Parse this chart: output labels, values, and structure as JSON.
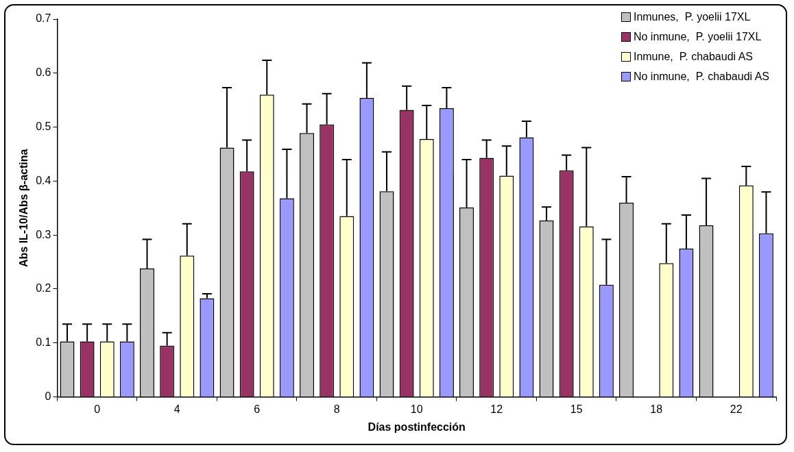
{
  "chart_data": {
    "type": "bar",
    "xlabel": "Días postinfección",
    "ylabel": "Abs IL-10/Abs β-actina",
    "categories": [
      "0",
      "4",
      "6",
      "8",
      "10",
      "12",
      "15",
      "18",
      "22"
    ],
    "ylim": [
      0,
      0.7
    ],
    "yticks": [
      0,
      0.1,
      0.2,
      0.3,
      0.4,
      0.5,
      0.6,
      0.7
    ],
    "grid": false,
    "legend": "top right",
    "series": [
      {
        "name": "Inmunes,  P. yoelii 17XL",
        "color": "#c0c0c0",
        "values": [
          0.103,
          0.238,
          0.462,
          0.489,
          0.381,
          0.351,
          0.327,
          0.36,
          0.318
        ],
        "errors": [
          [
            0.103,
            0.135
          ],
          [
            0.238,
            0.292
          ],
          [
            0.462,
            0.573
          ],
          [
            0.489,
            0.543
          ],
          [
            0.381,
            0.454
          ],
          [
            0.351,
            0.44
          ],
          [
            0.327,
            0.352
          ],
          [
            0.36,
            0.408
          ],
          [
            0.318,
            0.405
          ]
        ]
      },
      {
        "name": "No inmune,  P. yoelii 17XL",
        "color": "#993366",
        "values": [
          0.103,
          0.095,
          0.418,
          0.505,
          0.532,
          0.443,
          0.42,
          null,
          null
        ],
        "errors": [
          [
            0.103,
            0.135
          ],
          [
            0.095,
            0.119
          ],
          [
            0.418,
            0.476
          ],
          [
            0.505,
            0.562
          ],
          [
            0.532,
            0.576
          ],
          [
            0.443,
            0.476
          ],
          [
            0.42,
            0.448
          ],
          null,
          null
        ]
      },
      {
        "name": "Inmune,  P. chabaudi AS",
        "color": "#ffffcc",
        "values": [
          0.103,
          0.262,
          0.56,
          0.335,
          0.478,
          0.41,
          0.316,
          0.248,
          0.392
        ],
        "errors": [
          [
            0.103,
            0.135
          ],
          [
            0.262,
            0.321
          ],
          [
            0.56,
            0.624
          ],
          [
            0.335,
            0.44
          ],
          [
            0.478,
            0.54
          ],
          [
            0.41,
            0.465
          ],
          [
            0.316,
            0.462
          ],
          [
            0.248,
            0.321
          ],
          [
            0.392,
            0.427
          ]
        ]
      },
      {
        "name": "No inmune,  P. chabaudi AS",
        "color": "#9999ff",
        "values": [
          0.103,
          0.183,
          0.368,
          0.554,
          0.535,
          0.481,
          0.208,
          0.275,
          0.303
        ],
        "errors": [
          [
            0.103,
            0.135
          ],
          [
            0.183,
            0.191
          ],
          [
            0.368,
            0.459
          ],
          [
            0.554,
            0.619
          ],
          [
            0.535,
            0.573
          ],
          [
            0.481,
            0.511
          ],
          [
            0.208,
            0.292
          ],
          [
            0.275,
            0.337
          ],
          [
            0.303,
            0.38
          ]
        ]
      }
    ]
  }
}
